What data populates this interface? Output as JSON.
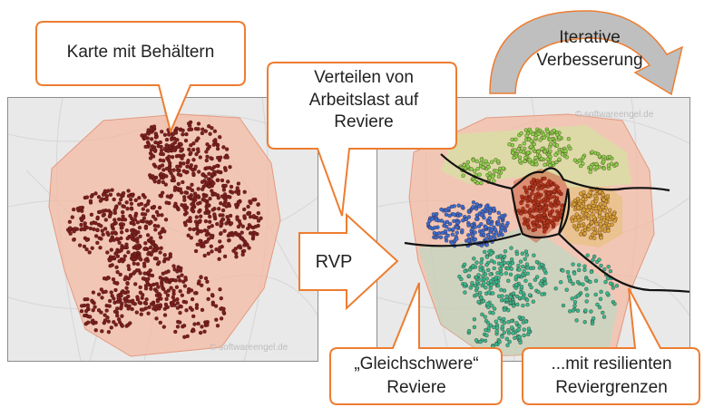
{
  "left_map": {
    "watermark": "© softwareengel.de"
  },
  "right_map": {
    "watermark": "© softwareengel.de"
  },
  "callouts": {
    "map_containers": "Karte mit Behältern",
    "distribute": "Verteilen von Arbeitslast auf Reviere",
    "iterative": "Iterative Verbesserung",
    "equal_districts": "„Gleichschwere“ Reviere",
    "resilient": "...mit resilienten Reviergrenzen"
  },
  "arrow": {
    "label": "RVP"
  },
  "colors": {
    "callout_border": "#ed7d31",
    "callout_fill": "#ffffff",
    "area_fill": "#f4b9a3",
    "containers_left": "#7b1f1f",
    "district_blue": "#3a6fd1",
    "district_red": "#b3351a",
    "district_gold": "#d8a53a",
    "district_green": "#8ad14c",
    "district_teal": "#37b98e",
    "boundary": "#111111",
    "loop_arrow": "#bfbfbf"
  }
}
